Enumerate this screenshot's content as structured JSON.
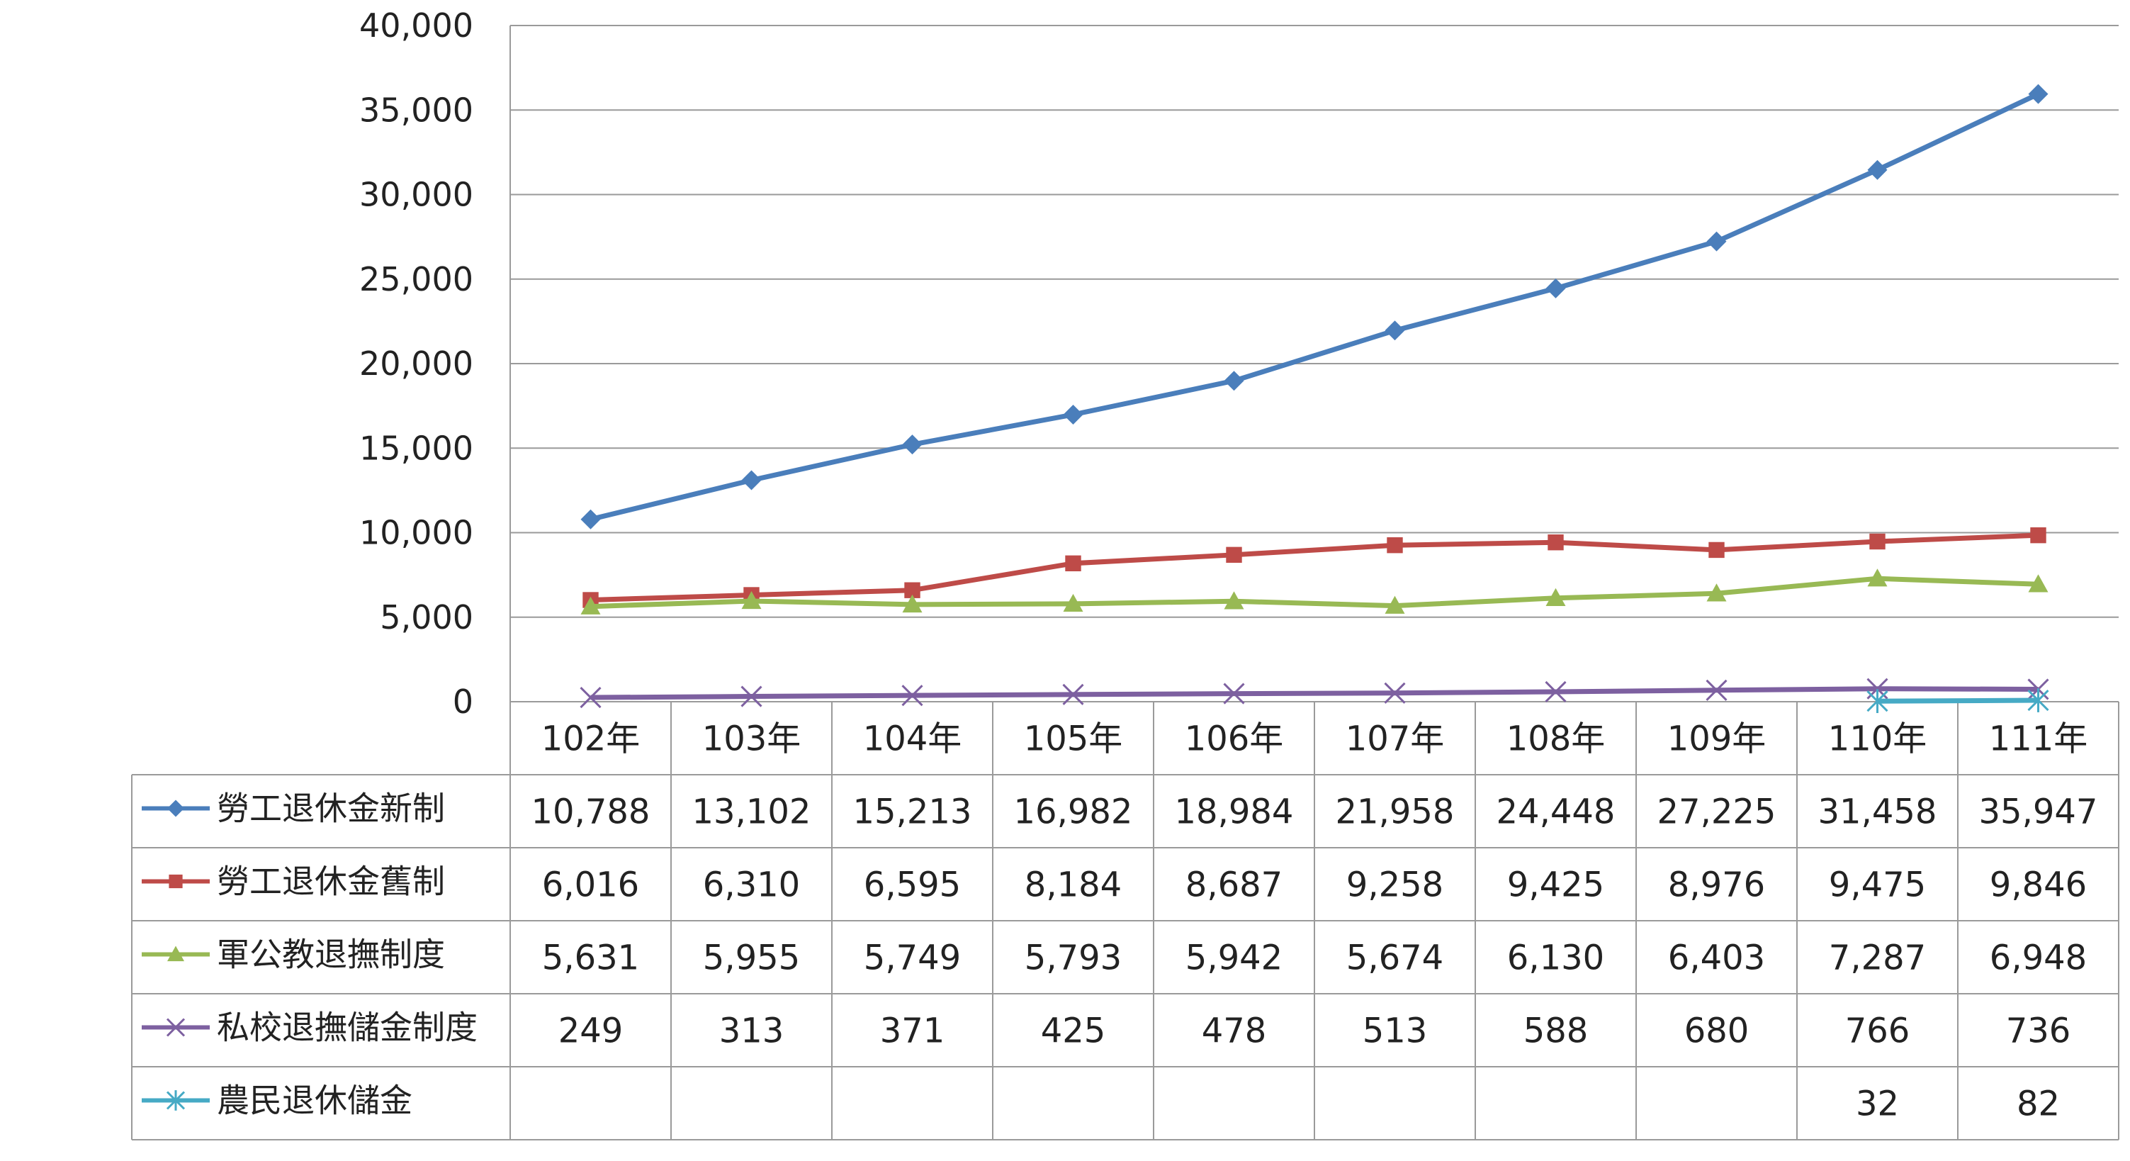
{
  "chart_data": {
    "type": "line",
    "title": "",
    "xlabel": "",
    "ylabel": "",
    "ylim": [
      0,
      40000
    ],
    "yticks": [
      "0",
      "5,000",
      "10,000",
      "15,000",
      "20,000",
      "25,000",
      "30,000",
      "35,000",
      "40,000"
    ],
    "categories": [
      "102年",
      "103年",
      "104年",
      "105年",
      "106年",
      "107年",
      "108年",
      "109年",
      "110年",
      "111年"
    ],
    "grid": true,
    "legend": "data-table",
    "series": [
      {
        "name": "勞工退休金新制",
        "color": "#4a7ebb",
        "marker": "diamond",
        "values": [
          10788,
          13102,
          15213,
          16982,
          18984,
          21958,
          24448,
          27225,
          31458,
          35947
        ],
        "labels": [
          "10,788",
          "13,102",
          "15,213",
          "16,982",
          "18,984",
          "21,958",
          "24,448",
          "27,225",
          "31,458",
          "35,947"
        ]
      },
      {
        "name": "勞工退休金舊制",
        "color": "#be4b48",
        "marker": "square",
        "values": [
          6016,
          6310,
          6595,
          8184,
          8687,
          9258,
          9425,
          8976,
          9475,
          9846
        ],
        "labels": [
          "6,016",
          "6,310",
          "6,595",
          "8,184",
          "8,687",
          "9,258",
          "9,425",
          "8,976",
          "9,475",
          "9,846"
        ]
      },
      {
        "name": "軍公教退撫制度",
        "color": "#98b954",
        "marker": "triangle",
        "values": [
          5631,
          5955,
          5749,
          5793,
          5942,
          5674,
          6130,
          6403,
          7287,
          6948
        ],
        "labels": [
          "5,631",
          "5,955",
          "5,749",
          "5,793",
          "5,942",
          "5,674",
          "6,130",
          "6,403",
          "7,287",
          "6,948"
        ]
      },
      {
        "name": "私校退撫儲金制度",
        "color": "#7d60a0",
        "marker": "x",
        "values": [
          249,
          313,
          371,
          425,
          478,
          513,
          588,
          680,
          766,
          736
        ],
        "labels": [
          "249",
          "313",
          "371",
          "425",
          "478",
          "513",
          "588",
          "680",
          "766",
          "736"
        ]
      },
      {
        "name": "農民退休儲金",
        "color": "#46aac5",
        "marker": "star",
        "values": [
          null,
          null,
          null,
          null,
          null,
          null,
          null,
          null,
          32,
          82
        ],
        "labels": [
          "",
          "",
          "",
          "",
          "",
          "",
          "",
          "",
          "32",
          "82"
        ]
      }
    ]
  }
}
